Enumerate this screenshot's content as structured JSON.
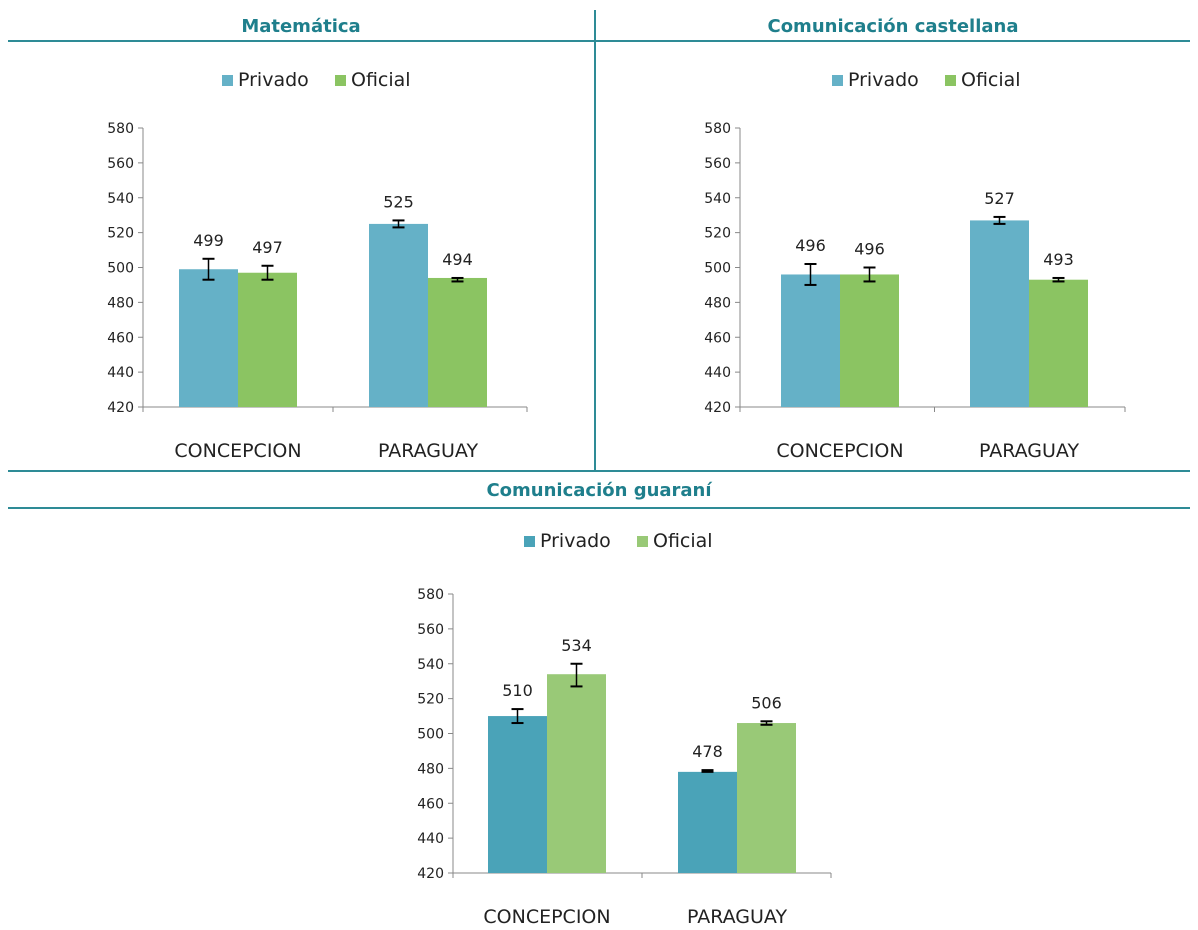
{
  "sections": {
    "top_left_title": "Matemática",
    "top_right_title": "Comunicación castellana",
    "bottom_title": "Comunicación guaraní"
  },
  "chart_data": [
    {
      "type": "bar",
      "title": "Matemática",
      "categories": [
        "CONCEPCION",
        "PARAGUAY"
      ],
      "series": [
        {
          "name": "Privado",
          "color": "#65b1c7",
          "values": [
            499,
            525
          ],
          "error_low": [
            493,
            523
          ],
          "error_high": [
            505,
            527
          ]
        },
        {
          "name": "Oficial",
          "color": "#8bc462",
          "values": [
            497,
            494
          ],
          "error_low": [
            493,
            492
          ],
          "error_high": [
            501,
            494
          ]
        }
      ],
      "ylim": [
        420,
        580
      ],
      "yticks": [
        420,
        440,
        460,
        480,
        500,
        520,
        540,
        560,
        580
      ],
      "legend": "top",
      "grid": false
    },
    {
      "type": "bar",
      "title": "Comunicación castellana",
      "categories": [
        "CONCEPCION",
        "PARAGUAY"
      ],
      "series": [
        {
          "name": "Privado",
          "color": "#65b1c7",
          "values": [
            496,
            527
          ],
          "error_low": [
            490,
            525
          ],
          "error_high": [
            502,
            529
          ]
        },
        {
          "name": "Oficial",
          "color": "#8bc462",
          "values": [
            496,
            493
          ],
          "error_low": [
            492,
            492
          ],
          "error_high": [
            500,
            494
          ]
        }
      ],
      "ylim": [
        420,
        580
      ],
      "yticks": [
        420,
        440,
        460,
        480,
        500,
        520,
        540,
        560,
        580
      ],
      "legend": "top",
      "grid": false
    },
    {
      "type": "bar",
      "title": "Comunicación guaraní",
      "categories": [
        "CONCEPCION",
        "PARAGUAY"
      ],
      "series": [
        {
          "name": "Privado",
          "color": "#4aa3b8",
          "values": [
            510,
            478
          ],
          "error_low": [
            506,
            478
          ],
          "error_high": [
            514,
            479
          ]
        },
        {
          "name": "Oficial",
          "color": "#99c977",
          "values": [
            534,
            506
          ],
          "error_low": [
            527,
            505
          ],
          "error_high": [
            540,
            507
          ]
        }
      ],
      "ylim": [
        420,
        580
      ],
      "yticks": [
        420,
        440,
        460,
        480,
        500,
        520,
        540,
        560,
        580
      ],
      "legend": "top",
      "grid": false
    }
  ]
}
